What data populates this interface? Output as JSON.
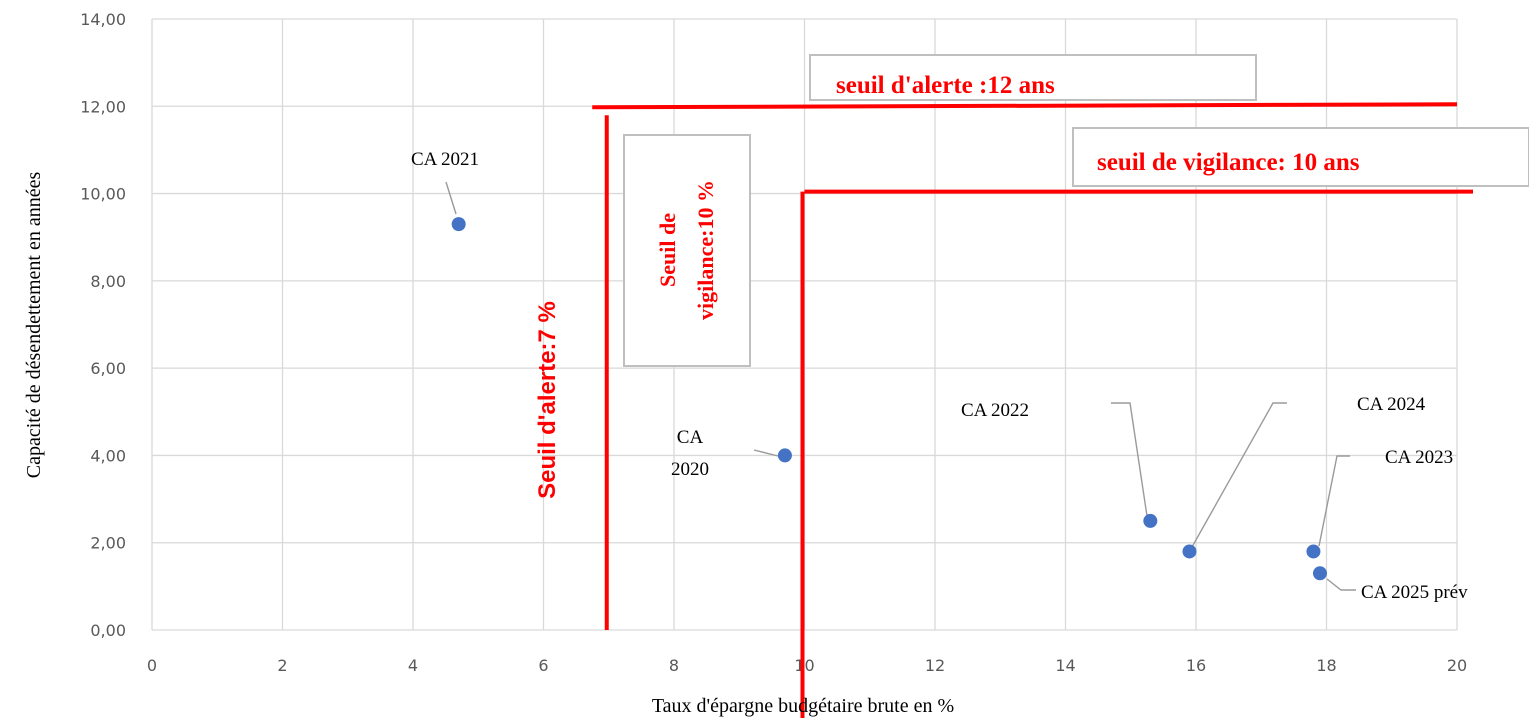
{
  "chart_data": {
    "type": "scatter",
    "title": "",
    "xlabel": "Taux d'épargne budgétaire brute en %",
    "ylabel": "Capacité de désendettement en années",
    "xlim": [
      0,
      20
    ],
    "ylim": [
      0,
      14
    ],
    "x_ticks": [
      "0",
      "2",
      "4",
      "6",
      "8",
      "10",
      "12",
      "14",
      "16",
      "18",
      "20"
    ],
    "y_ticks": [
      "0,00",
      "2,00",
      "4,00",
      "6,00",
      "8,00",
      "10,00",
      "12,00",
      "14,00"
    ],
    "grid": true,
    "legend": "none",
    "point_color": "#4472c4",
    "points": [
      {
        "label": "CA 2021",
        "x": 4.7,
        "y": 9.3
      },
      {
        "label": "CA 2020",
        "x": 9.7,
        "y": 4.0
      },
      {
        "label": "CA 2022",
        "x": 15.3,
        "y": 2.5
      },
      {
        "label": "CA 2024",
        "x": 15.9,
        "y": 1.8
      },
      {
        "label": "CA 2023",
        "x": 17.8,
        "y": 1.8
      },
      {
        "label": "CA 2025 prév",
        "x": 17.9,
        "y": 1.3
      }
    ],
    "thresholds": {
      "color": "#ff0000",
      "alerte_y": {
        "label": "seuil d'alerte :12 ans",
        "value": 12,
        "from_x": 6.9,
        "to_x": 20
      },
      "vigilance_y": {
        "label": "seuil de vigilance: 10 ans",
        "value": 10,
        "from_x": 10,
        "to_x": 20
      },
      "alerte_x": {
        "label": "Seuil d'alerte:7 %",
        "value": 7,
        "from_y": 0,
        "to_y": 12
      },
      "vigilance_x": {
        "label_line1": "Seuil de",
        "label_line2": "vigilance:10 %",
        "value": 10,
        "from_y": 0,
        "to_y": 10
      }
    }
  }
}
